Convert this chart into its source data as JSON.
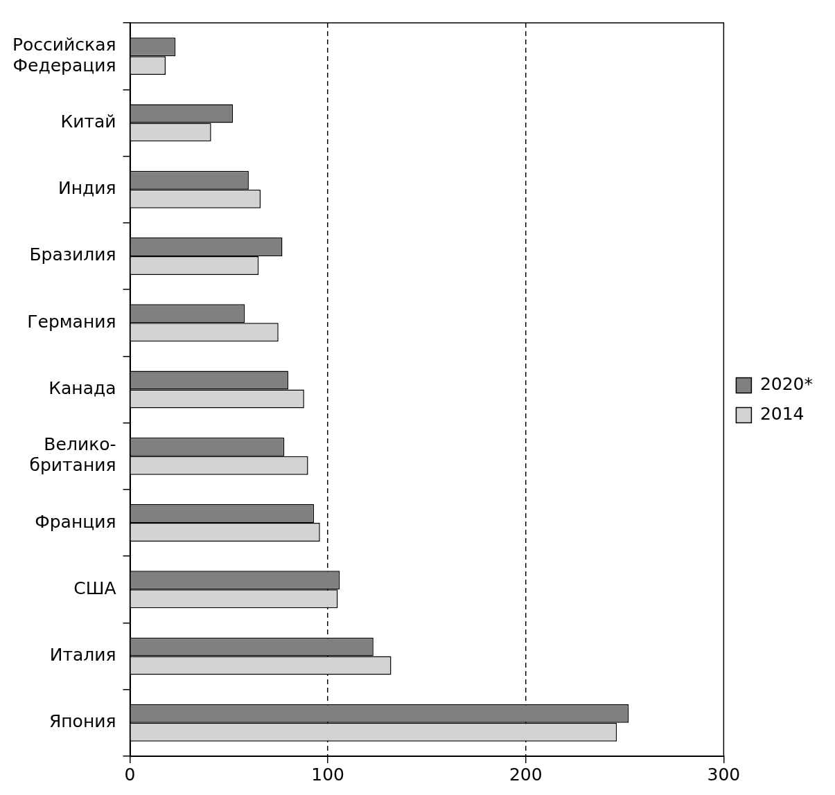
{
  "chart_data": {
    "type": "bar",
    "orientation": "horizontal",
    "categories": [
      "Российская\nФедерация",
      "Китай",
      "Индия",
      "Бразилия",
      "Германия",
      "Канада",
      "Велико-\nбритания",
      "Франция",
      "США",
      "Италия",
      "Япония"
    ],
    "series": [
      {
        "name": "2020*",
        "color": "#808080",
        "values": [
          23,
          52,
          60,
          77,
          58,
          80,
          78,
          93,
          106,
          123,
          252
        ]
      },
      {
        "name": "2014",
        "color": "#d3d3d3",
        "values": [
          18,
          41,
          66,
          65,
          75,
          88,
          90,
          96,
          105,
          132,
          246
        ]
      }
    ],
    "xlim": [
      0,
      300
    ],
    "xticks": [
      0,
      100,
      200,
      300
    ],
    "grid": "x",
    "line_style": "dashed",
    "legend": "right"
  }
}
